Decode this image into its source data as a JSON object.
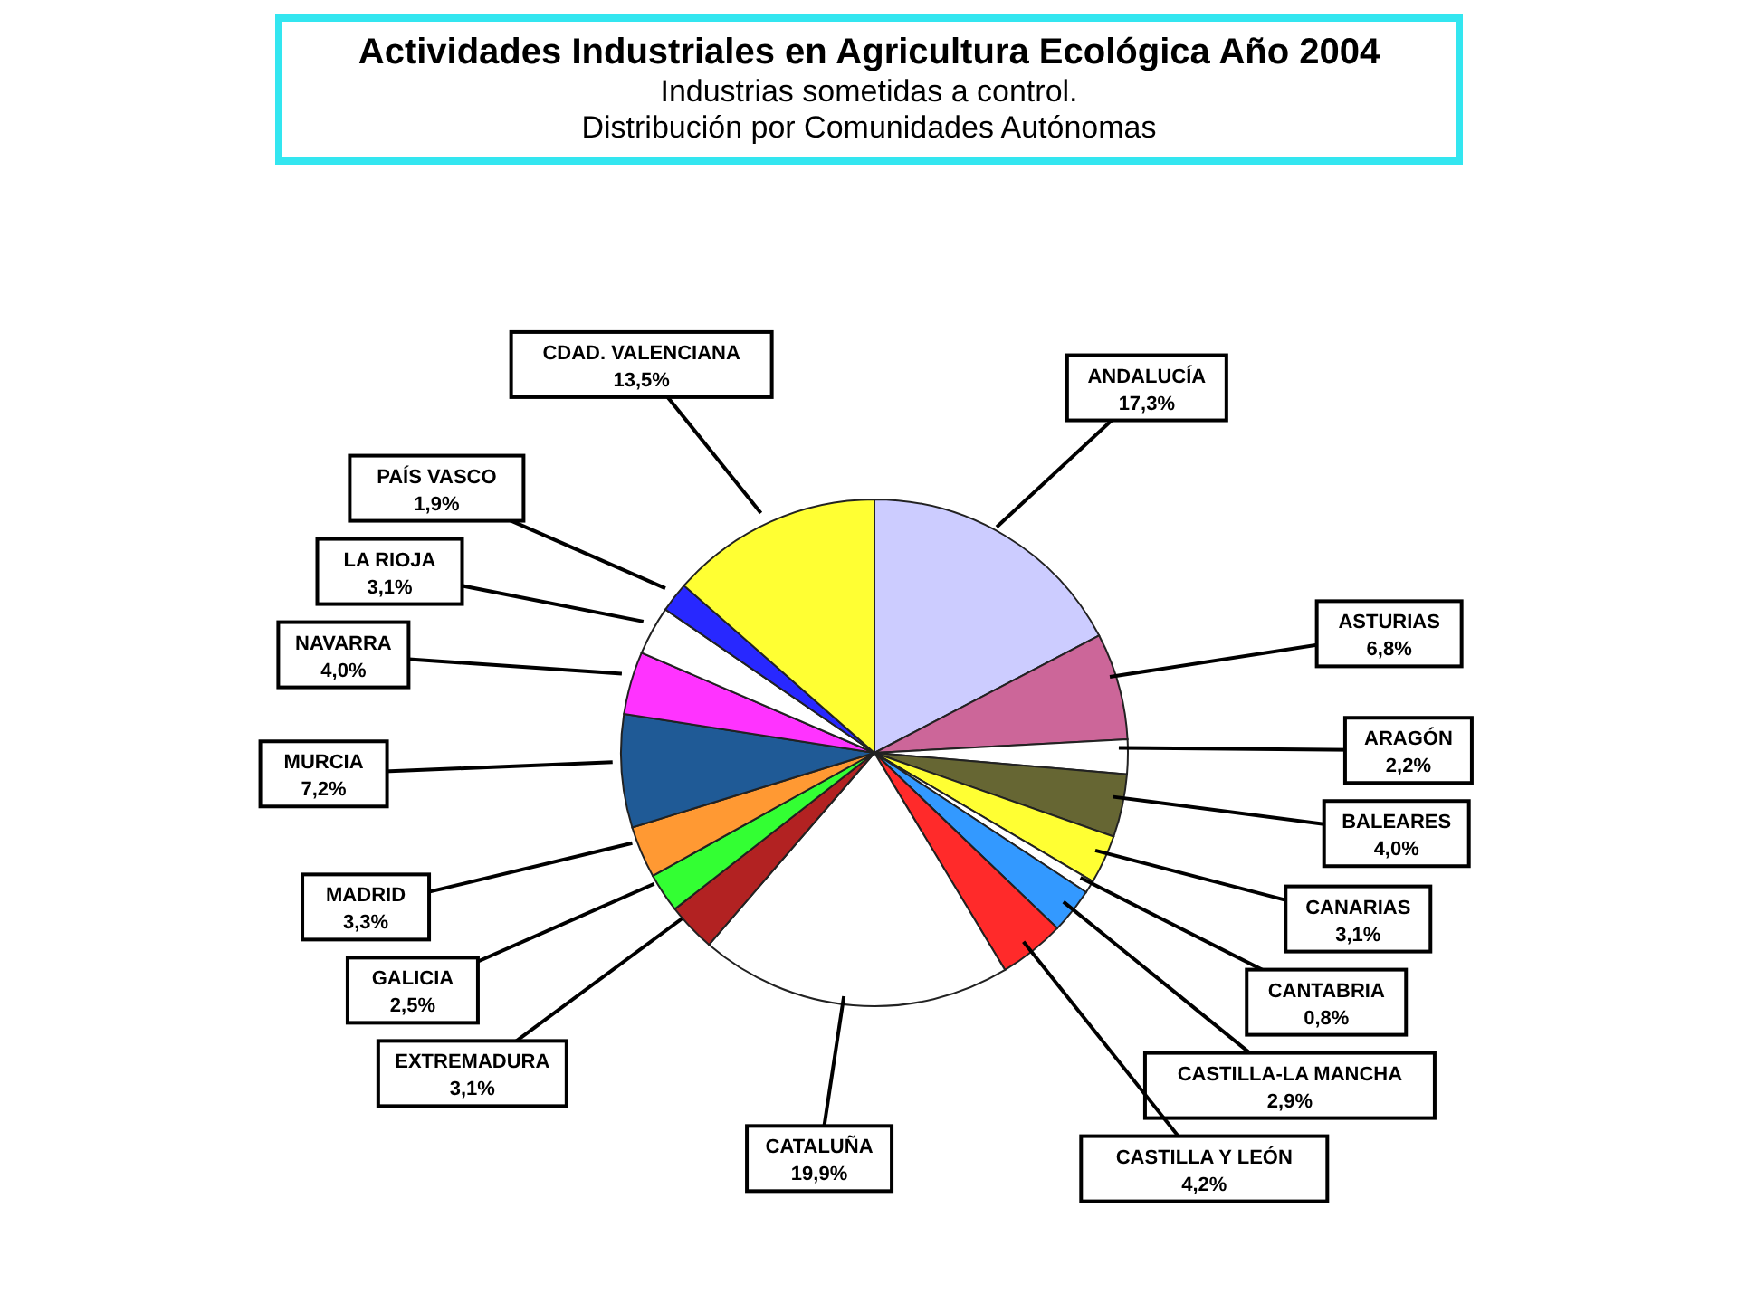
{
  "chart_data": {
    "type": "pie",
    "title": "Actividades Industriales en Agricultura Ecológica Año 2004",
    "subtitle": "Industrias sometidas a control.\nDistribución por Comunidades Autónomas",
    "categories": [
      "ANDALUCÍA",
      "ASTURIAS",
      "ARAGÓN",
      "BALEARES",
      "CANARIAS",
      "CANTABRIA",
      "CASTILLA-LA MANCHA",
      "CASTILLA Y LEÓN",
      "CATALUÑA",
      "EXTREMADURA",
      "GALICIA",
      "MADRID",
      "MURCIA",
      "NAVARRA",
      "LA RIOJA",
      "PAÍS VASCO",
      "CDAD. VALENCIANA"
    ],
    "values": [
      17.3,
      6.8,
      2.2,
      4.0,
      3.1,
      0.8,
      2.9,
      4.2,
      19.9,
      3.1,
      2.5,
      3.3,
      7.2,
      4.0,
      3.1,
      1.9,
      13.5
    ],
    "value_labels": [
      "17,3%",
      "6,8%",
      "2,2%",
      "4,0%",
      "3,1%",
      "0,8%",
      "2,9%",
      "4,2%",
      "19,9%",
      "3,1%",
      "2,5%",
      "3,3%",
      "7,2%",
      "4,0%",
      "3,1%",
      "1,9%",
      "13,5%"
    ],
    "colors": [
      "#ccccff",
      "#cc6699",
      "#ffffff",
      "#666633",
      "#ffff33",
      "#ffffff",
      "#3399ff",
      "#ff2a2a",
      "#ffffff",
      "#b22222",
      "#33ff33",
      "#ff9933",
      "#1f5a96",
      "#ff33ff",
      "#ffffff",
      "#2828ff",
      "#ffff33"
    ]
  }
}
